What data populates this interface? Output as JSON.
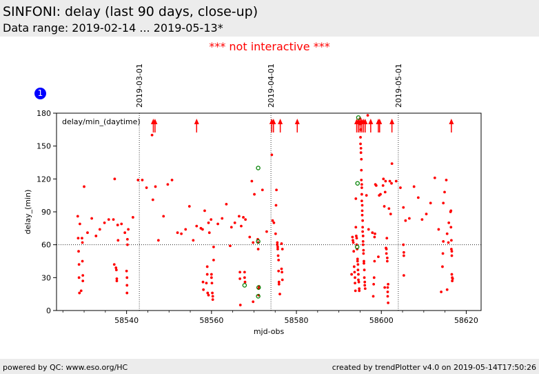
{
  "header": {
    "title": "SINFONI: delay (last 90 days, close-up)",
    "subtitle": "Data range: 2019-02-14 ... 2019-05-13*"
  },
  "notice": "*** not interactive ***",
  "badge": "1",
  "footer": {
    "left": "powered by QC: www.eso.org/HC",
    "right": "created by trendPlotter v4.0 on 2019-05-14T17:50:26"
  },
  "colors": {
    "points": "#ff0000",
    "highlight": "#008000",
    "badge": "#0000ff",
    "notice": "#ff0000"
  },
  "chart_data": {
    "type": "scatter",
    "xlabel": "mjd-obs",
    "ylabel": "delay_(min)",
    "annotation": "delay/min_(daytime)",
    "xlim": [
      58523.5,
      58623.5
    ],
    "ylim": [
      0,
      180
    ],
    "xticks": [
      58540,
      58560,
      58580,
      58600,
      58620
    ],
    "yticks": [
      0,
      30,
      60,
      90,
      120,
      150,
      180
    ],
    "reference_line_y": 60,
    "date_markers": [
      {
        "mjd": 58543.0,
        "label": "2019-03-01"
      },
      {
        "mjd": 58574.0,
        "label": "2019-04-01"
      },
      {
        "mjd": 58604.0,
        "label": "2019-05-01"
      }
    ],
    "off_scale_arrows_mjd": [
      58546.3,
      58546.7,
      58556.5,
      58574.2,
      58574.6,
      58576.2,
      58580.2,
      58594.2,
      58594.6,
      58595.0,
      58595.4,
      58595.8,
      58596.2,
      58597.5,
      58599.3,
      58599.6,
      58602.5,
      58616.5
    ],
    "series": [
      {
        "color": "#ff0000",
        "points": [
          [
            58528.5,
            86
          ],
          [
            58528.6,
            66
          ],
          [
            58528.7,
            54
          ],
          [
            58528.8,
            42
          ],
          [
            58528.8,
            30
          ],
          [
            58528.9,
            16
          ],
          [
            58529.0,
            79
          ],
          [
            58529.3,
            18
          ],
          [
            58529.5,
            66
          ],
          [
            58529.6,
            62
          ],
          [
            58529.6,
            45
          ],
          [
            58529.7,
            32
          ],
          [
            58529.7,
            27
          ],
          [
            58530.0,
            113
          ],
          [
            58530.8,
            71
          ],
          [
            58531.8,
            84
          ],
          [
            58532.8,
            68
          ],
          [
            58533.7,
            74
          ],
          [
            58534.8,
            80
          ],
          [
            58535.8,
            83
          ],
          [
            58536.9,
            83
          ],
          [
            58537.1,
            42
          ],
          [
            58537.2,
            120
          ],
          [
            58537.5,
            39
          ],
          [
            58537.6,
            37
          ],
          [
            58537.7,
            29
          ],
          [
            58537.7,
            27
          ],
          [
            58537.9,
            78
          ],
          [
            58538.0,
            64
          ],
          [
            58538.8,
            79
          ],
          [
            58539.6,
            71
          ],
          [
            58540.0,
            36
          ],
          [
            58540.1,
            30
          ],
          [
            58540.1,
            23
          ],
          [
            58540.1,
            16
          ],
          [
            58540.2,
            65
          ],
          [
            58540.2,
            60
          ],
          [
            58540.4,
            74
          ],
          [
            58541.5,
            85
          ],
          [
            58542.7,
            119
          ],
          [
            58543.7,
            119
          ],
          [
            58544.7,
            112
          ],
          [
            58546.0,
            160
          ],
          [
            58546.2,
            101
          ],
          [
            58546.8,
            113
          ],
          [
            58547.5,
            64
          ],
          [
            58548.7,
            86
          ],
          [
            58549.7,
            115
          ],
          [
            58550.7,
            119
          ],
          [
            58552.0,
            71
          ],
          [
            58552.9,
            70
          ],
          [
            58553.9,
            74
          ],
          [
            58554.8,
            95
          ],
          [
            58555.7,
            64
          ],
          [
            58556.5,
            77
          ],
          [
            58557.5,
            75
          ],
          [
            58557.9,
            74
          ],
          [
            58558.0,
            26
          ],
          [
            58558.1,
            19
          ],
          [
            58558.4,
            91
          ],
          [
            58558.8,
            25
          ],
          [
            58559.0,
            40
          ],
          [
            58559.0,
            33
          ],
          [
            58559.1,
            16
          ],
          [
            58559.3,
            14
          ],
          [
            58559.3,
            80
          ],
          [
            58559.5,
            71
          ],
          [
            58559.9,
            83
          ],
          [
            58560.0,
            33
          ],
          [
            58560.0,
            30
          ],
          [
            58560.1,
            25
          ],
          [
            58560.2,
            16
          ],
          [
            58560.3,
            13
          ],
          [
            58560.3,
            10
          ],
          [
            58560.5,
            58
          ],
          [
            58560.5,
            46
          ],
          [
            58561.5,
            79
          ],
          [
            58562.5,
            84
          ],
          [
            58563.5,
            97
          ],
          [
            58564.4,
            59
          ],
          [
            58564.7,
            76
          ],
          [
            58565.5,
            80
          ],
          [
            58566.5,
            86
          ],
          [
            58566.7,
            35
          ],
          [
            58566.7,
            29
          ],
          [
            58566.8,
            5
          ],
          [
            58567.0,
            77
          ],
          [
            58567.5,
            85
          ],
          [
            58567.8,
            35
          ],
          [
            58567.8,
            30
          ],
          [
            58567.9,
            26
          ],
          [
            58568.0,
            83
          ],
          [
            58569.0,
            67
          ],
          [
            58569.5,
            118
          ],
          [
            58569.8,
            62
          ],
          [
            58569.8,
            8
          ],
          [
            58570.1,
            106
          ],
          [
            58570.9,
            65
          ],
          [
            58571.0,
            62
          ],
          [
            58571.0,
            56
          ],
          [
            58571.1,
            14
          ],
          [
            58571.1,
            20
          ],
          [
            58571.2,
            22
          ],
          [
            58572.0,
            110
          ],
          [
            58573.0,
            72
          ],
          [
            58574.2,
            142
          ],
          [
            58574.4,
            82
          ],
          [
            58574.7,
            80
          ],
          [
            58575.1,
            70
          ],
          [
            58575.2,
            96
          ],
          [
            58575.3,
            110
          ],
          [
            58575.5,
            62
          ],
          [
            58575.5,
            60
          ],
          [
            58575.6,
            58
          ],
          [
            58575.6,
            56
          ],
          [
            58575.7,
            50
          ],
          [
            58575.8,
            46
          ],
          [
            58575.8,
            36
          ],
          [
            58575.9,
            26
          ],
          [
            58575.9,
            24
          ],
          [
            58576.1,
            15
          ],
          [
            58576.5,
            61
          ],
          [
            58576.5,
            38
          ],
          [
            58576.6,
            35
          ],
          [
            58576.7,
            28
          ],
          [
            58576.7,
            56
          ],
          [
            58593.0,
            33
          ],
          [
            58593.2,
            67
          ],
          [
            58593.3,
            64
          ],
          [
            58593.4,
            62
          ],
          [
            58593.5,
            54
          ],
          [
            58593.6,
            40
          ],
          [
            58593.7,
            35
          ],
          [
            58593.8,
            30
          ],
          [
            58593.8,
            25
          ],
          [
            58593.9,
            18
          ],
          [
            58594.0,
            102
          ],
          [
            58594.0,
            76
          ],
          [
            58594.1,
            68
          ],
          [
            58594.2,
            66
          ],
          [
            58594.2,
            60
          ],
          [
            58594.3,
            56
          ],
          [
            58594.4,
            47
          ],
          [
            58594.4,
            45
          ],
          [
            58594.5,
            42
          ],
          [
            58594.5,
            37
          ],
          [
            58594.6,
            33
          ],
          [
            58594.6,
            28
          ],
          [
            58594.7,
            26
          ],
          [
            58594.8,
            20
          ],
          [
            58594.8,
            18
          ],
          [
            58595.0,
            175
          ],
          [
            58595.0,
            170
          ],
          [
            58595.1,
            165
          ],
          [
            58595.1,
            158
          ],
          [
            58595.1,
            152
          ],
          [
            58595.2,
            148
          ],
          [
            58595.2,
            144
          ],
          [
            58595.3,
            138
          ],
          [
            58595.3,
            128
          ],
          [
            58595.3,
            119
          ],
          [
            58595.4,
            115
          ],
          [
            58595.4,
            112
          ],
          [
            58595.4,
            106
          ],
          [
            58595.4,
            100
          ],
          [
            58595.5,
            96
          ],
          [
            58595.5,
            91
          ],
          [
            58595.5,
            87
          ],
          [
            58595.6,
            82
          ],
          [
            58595.6,
            76
          ],
          [
            58595.6,
            72
          ],
          [
            58595.7,
            68
          ],
          [
            58595.7,
            63
          ],
          [
            58595.7,
            60
          ],
          [
            58595.8,
            55
          ],
          [
            58595.8,
            52
          ],
          [
            58595.9,
            45
          ],
          [
            58595.9,
            43
          ],
          [
            58596.0,
            37
          ],
          [
            58596.0,
            30
          ],
          [
            58596.1,
            26
          ],
          [
            58596.1,
            23
          ],
          [
            58596.2,
            20
          ],
          [
            58596.5,
            105
          ],
          [
            58596.8,
            178
          ],
          [
            58597.0,
            74
          ],
          [
            58597.9,
            71
          ],
          [
            58598.1,
            13
          ],
          [
            58598.2,
            24
          ],
          [
            58598.3,
            30
          ],
          [
            58598.4,
            45
          ],
          [
            58598.4,
            67
          ],
          [
            58598.5,
            70
          ],
          [
            58598.6,
            115
          ],
          [
            58598.8,
            114
          ],
          [
            58599.3,
            49
          ],
          [
            58599.5,
            105
          ],
          [
            58599.8,
            106
          ],
          [
            58600.4,
            114
          ],
          [
            58600.5,
            120
          ],
          [
            58600.7,
            95
          ],
          [
            58600.8,
            21
          ],
          [
            58600.9,
            108
          ],
          [
            58601.0,
            118
          ],
          [
            58601.1,
            57
          ],
          [
            58601.2,
            56
          ],
          [
            58601.2,
            52
          ],
          [
            58601.3,
            66
          ],
          [
            58601.4,
            48
          ],
          [
            58601.4,
            45
          ],
          [
            58601.5,
            21
          ],
          [
            58601.5,
            17
          ],
          [
            58601.5,
            13
          ],
          [
            58601.6,
            7
          ],
          [
            58601.6,
            24
          ],
          [
            58601.8,
            93
          ],
          [
            58602.0,
            118
          ],
          [
            58602.2,
            88
          ],
          [
            58602.4,
            116
          ],
          [
            58602.5,
            134
          ],
          [
            58603.5,
            118
          ],
          [
            58604.5,
            112
          ],
          [
            58605.2,
            94
          ],
          [
            58605.2,
            60
          ],
          [
            58605.3,
            53
          ],
          [
            58605.3,
            50
          ],
          [
            58605.3,
            32
          ],
          [
            58605.7,
            82
          ],
          [
            58606.6,
            84
          ],
          [
            58607.7,
            113
          ],
          [
            58608.7,
            103
          ],
          [
            58609.6,
            83
          ],
          [
            58610.6,
            88
          ],
          [
            58611.6,
            98
          ],
          [
            58612.6,
            121
          ],
          [
            58613.5,
            74
          ],
          [
            58614.1,
            17
          ],
          [
            58614.4,
            40
          ],
          [
            58614.5,
            52
          ],
          [
            58614.6,
            63
          ],
          [
            58614.6,
            98
          ],
          [
            58614.9,
            108
          ],
          [
            58615.3,
            119
          ],
          [
            58615.5,
            70
          ],
          [
            58615.5,
            19
          ],
          [
            58615.8,
            62
          ],
          [
            58615.9,
            80
          ],
          [
            58616.3,
            90
          ],
          [
            58616.4,
            91
          ],
          [
            58616.4,
            76
          ],
          [
            58616.5,
            64
          ],
          [
            58616.5,
            56
          ],
          [
            58616.6,
            54
          ],
          [
            58616.6,
            50
          ],
          [
            58616.6,
            33
          ],
          [
            58616.7,
            30
          ],
          [
            58616.7,
            27
          ],
          [
            58616.8,
            29
          ]
        ]
      },
      {
        "color": "#008000",
        "points": [
          [
            58567.8,
            23
          ],
          [
            58571.0,
            130
          ],
          [
            58571.0,
            63
          ],
          [
            58571.0,
            13
          ],
          [
            58571.1,
            21
          ],
          [
            58594.3,
            58
          ],
          [
            58594.4,
            116
          ],
          [
            58594.6,
            176
          ]
        ]
      }
    ]
  }
}
